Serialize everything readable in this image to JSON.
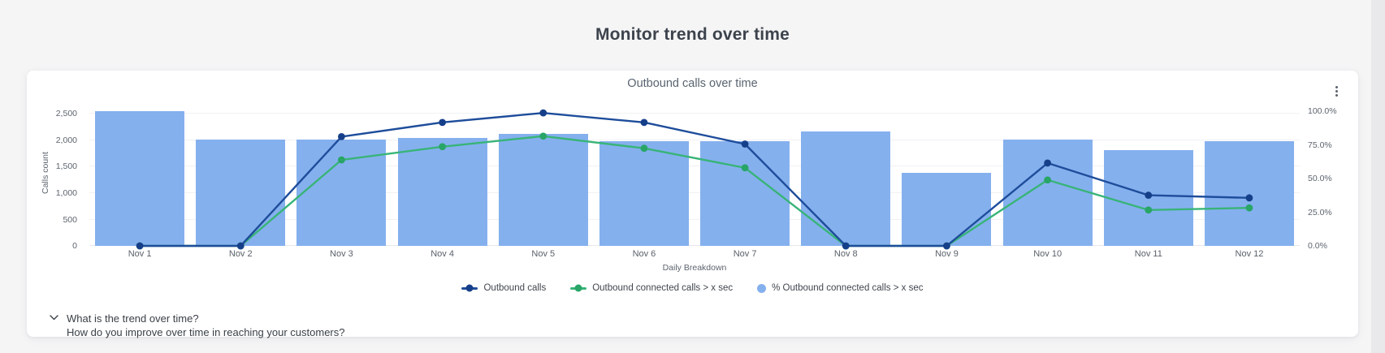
{
  "page": {
    "title": "Monitor trend over time"
  },
  "card": {
    "title": "Outbound calls over time",
    "menu_icon": "kebab-menu",
    "questions": {
      "line1": "What is the trend over time?",
      "line2": "How do you improve over time in reaching your customers?"
    }
  },
  "chart_data": {
    "type": "bar",
    "subtype": "combo-bar-line",
    "title": "Outbound calls over time",
    "categories": [
      "Nov 1",
      "Nov 2",
      "Nov 3",
      "Nov 4",
      "Nov 5",
      "Nov 6",
      "Nov 7",
      "Nov 8",
      "Nov 9",
      "Nov 10",
      "Nov 11",
      "Nov 12"
    ],
    "x_axis_label": "Daily Breakdown",
    "grid": true,
    "legend_position": "bottom",
    "y_left": {
      "label": "Calls count",
      "tick_labels": [
        "0",
        "500",
        "1,000",
        "1,500",
        "2,000",
        "2,500"
      ],
      "tick_values": [
        0,
        500,
        1000,
        1500,
        2000,
        2500
      ],
      "scale_max": 2553
    },
    "y_right": {
      "tick_labels": [
        "0.0%",
        "25.0%",
        "50.0%",
        "75.0%",
        "100.0%"
      ],
      "tick_values": [
        0,
        25,
        50,
        75,
        100
      ],
      "scale_max": 100
    },
    "series": [
      {
        "name": "Outbound calls",
        "type": "line",
        "axis": "left",
        "color": "#1e4d9b",
        "dot_color": "#163f8a",
        "values": [
          0,
          0,
          2070,
          2340,
          2520,
          2340,
          1930,
          0,
          0,
          1570,
          960,
          910
        ]
      },
      {
        "name": "Outbound connected calls > x sec",
        "type": "line",
        "axis": "left",
        "color": "#38b478",
        "dot_color": "#28a567",
        "values": [
          0,
          0,
          1630,
          1880,
          2080,
          1850,
          1480,
          0,
          0,
          1250,
          680,
          720
        ]
      },
      {
        "name": "% Outbound connected calls > x sec",
        "type": "bar",
        "axis": "right",
        "color": "#85b0ee",
        "values": [
          100,
          79,
          79,
          80,
          83,
          78,
          78,
          85,
          54,
          79,
          71,
          78
        ]
      }
    ]
  }
}
